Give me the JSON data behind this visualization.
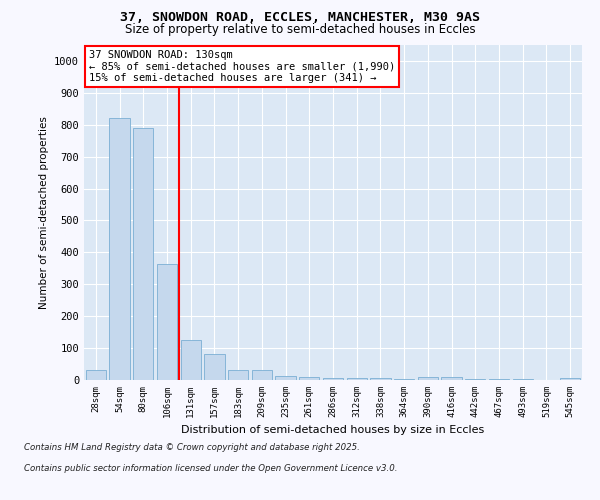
{
  "title_line1": "37, SNOWDON ROAD, ECCLES, MANCHESTER, M30 9AS",
  "title_line2": "Size of property relative to semi-detached houses in Eccles",
  "xlabel": "Distribution of semi-detached houses by size in Eccles",
  "ylabel": "Number of semi-detached properties",
  "categories": [
    "28sqm",
    "54sqm",
    "80sqm",
    "106sqm",
    "131sqm",
    "157sqm",
    "183sqm",
    "209sqm",
    "235sqm",
    "261sqm",
    "286sqm",
    "312sqm",
    "338sqm",
    "364sqm",
    "390sqm",
    "416sqm",
    "442sqm",
    "467sqm",
    "493sqm",
    "519sqm",
    "545sqm"
  ],
  "values": [
    30,
    820,
    790,
    365,
    125,
    82,
    32,
    30,
    14,
    8,
    5,
    5,
    5,
    3,
    10,
    10,
    3,
    3,
    3,
    0,
    5
  ],
  "bar_color": "#c5d8ed",
  "bar_edge_color": "#7bafd4",
  "red_line_x": 3.5,
  "annotation_line1": "37 SNOWDON ROAD: 130sqm",
  "annotation_line2": "← 85% of semi-detached houses are smaller (1,990)",
  "annotation_line3": "15% of semi-detached houses are larger (341) →",
  "ylim": [
    0,
    1050
  ],
  "yticks": [
    0,
    100,
    200,
    300,
    400,
    500,
    600,
    700,
    800,
    900,
    1000
  ],
  "footnote1": "Contains HM Land Registry data © Crown copyright and database right 2025.",
  "footnote2": "Contains public sector information licensed under the Open Government Licence v3.0.",
  "fig_bg_color": "#f8f8ff",
  "plot_bg_color": "#dce8f5",
  "grid_color": "#ffffff"
}
